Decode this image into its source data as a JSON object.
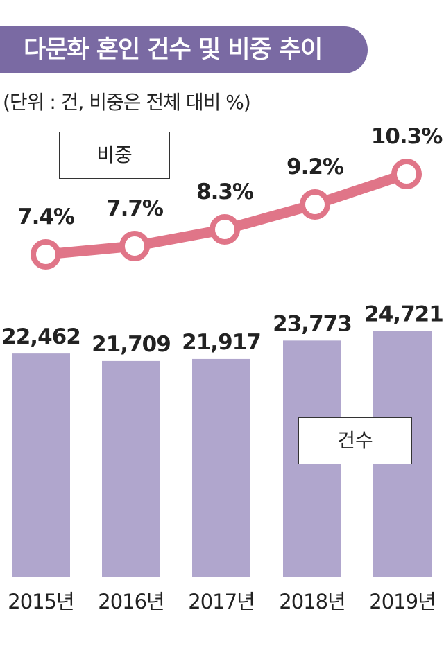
{
  "title": "다문화 혼인 건수 및 비중 추이",
  "unit_note": "(단위 : 건, 비중은 전체 대비 %)",
  "legend": {
    "rate": "비중",
    "count": "건수"
  },
  "colors": {
    "title_bg": "#7a6aa3",
    "bar": "#b0a6cd",
    "line": "#e07588"
  },
  "chart_data": {
    "type": "bar",
    "categories": [
      "2015년",
      "2016년",
      "2017년",
      "2018년",
      "2019년"
    ],
    "series": [
      {
        "name": "건수",
        "type": "bar",
        "values": [
          22462,
          21709,
          21917,
          23773,
          24721
        ],
        "labels": [
          "22,462",
          "21,709",
          "21,917",
          "23,773",
          "24,721"
        ]
      },
      {
        "name": "비중",
        "type": "line",
        "values": [
          7.4,
          7.7,
          8.3,
          9.2,
          10.3
        ],
        "labels": [
          "7.4%",
          "7.7%",
          "8.3%",
          "9.2%",
          "10.3%"
        ]
      }
    ]
  }
}
